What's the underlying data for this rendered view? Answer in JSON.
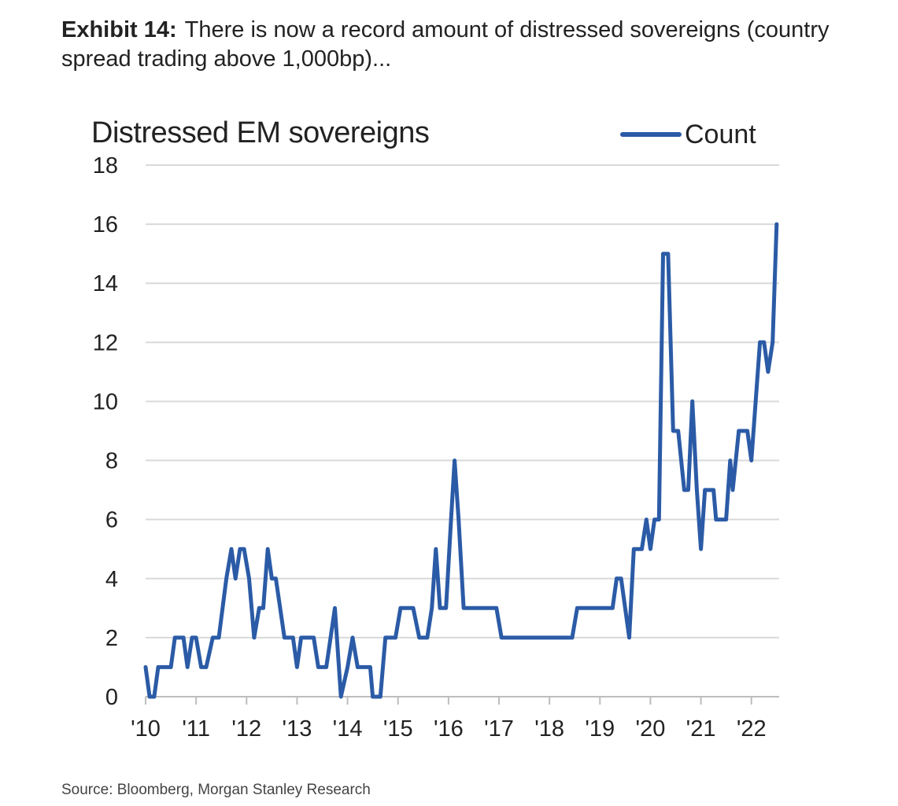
{
  "exhibit": {
    "label": "Exhibit 14:",
    "text": "There is now a record amount of distressed sovereigns (country spread trading above 1,000bp)..."
  },
  "source": "Source: Bloomberg, Morgan Stanley Research",
  "colors": {
    "line": "#2b5ba6",
    "grid": "#d9d9d9"
  },
  "chart_data": {
    "type": "line",
    "title": "Distressed EM sovereigns",
    "xlabel": "",
    "ylabel": "",
    "ylim": [
      0,
      18
    ],
    "yticks": [
      0,
      2,
      4,
      6,
      8,
      10,
      12,
      14,
      16,
      18
    ],
    "xlim": [
      2010.0,
      2022.55
    ],
    "xticks": [
      {
        "value": 2010,
        "label": "'10"
      },
      {
        "value": 2011,
        "label": "'11"
      },
      {
        "value": 2012,
        "label": "'12"
      },
      {
        "value": 2013,
        "label": "'13"
      },
      {
        "value": 2014,
        "label": "'14"
      },
      {
        "value": 2015,
        "label": "'15"
      },
      {
        "value": 2016,
        "label": "'16"
      },
      {
        "value": 2017,
        "label": "'17"
      },
      {
        "value": 2018,
        "label": "'18"
      },
      {
        "value": 2019,
        "label": "'19"
      },
      {
        "value": 2020,
        "label": "'20"
      },
      {
        "value": 2021,
        "label": "'21"
      },
      {
        "value": 2022,
        "label": "'22"
      }
    ],
    "grid": true,
    "legend_position": "top-right",
    "series": [
      {
        "name": "Count",
        "points": [
          [
            2010.0,
            1
          ],
          [
            2010.08,
            0
          ],
          [
            2010.17,
            0
          ],
          [
            2010.25,
            1
          ],
          [
            2010.5,
            1
          ],
          [
            2010.58,
            2
          ],
          [
            2010.75,
            2
          ],
          [
            2010.83,
            1
          ],
          [
            2010.92,
            2
          ],
          [
            2011.0,
            2
          ],
          [
            2011.1,
            1
          ],
          [
            2011.2,
            1
          ],
          [
            2011.33,
            2
          ],
          [
            2011.45,
            2
          ],
          [
            2011.6,
            4
          ],
          [
            2011.7,
            5
          ],
          [
            2011.78,
            4
          ],
          [
            2011.87,
            5
          ],
          [
            2011.95,
            5
          ],
          [
            2012.05,
            4
          ],
          [
            2012.15,
            2
          ],
          [
            2012.25,
            3
          ],
          [
            2012.33,
            3
          ],
          [
            2012.42,
            5
          ],
          [
            2012.5,
            4
          ],
          [
            2012.58,
            4
          ],
          [
            2012.75,
            2
          ],
          [
            2012.92,
            2
          ],
          [
            2013.0,
            1
          ],
          [
            2013.08,
            2
          ],
          [
            2013.33,
            2
          ],
          [
            2013.42,
            1
          ],
          [
            2013.58,
            1
          ],
          [
            2013.75,
            3
          ],
          [
            2013.87,
            0
          ],
          [
            2014.0,
            1
          ],
          [
            2014.1,
            2
          ],
          [
            2014.2,
            1
          ],
          [
            2014.45,
            1
          ],
          [
            2014.5,
            0
          ],
          [
            2014.65,
            0
          ],
          [
            2014.75,
            2
          ],
          [
            2014.95,
            2
          ],
          [
            2015.05,
            3
          ],
          [
            2015.3,
            3
          ],
          [
            2015.42,
            2
          ],
          [
            2015.58,
            2
          ],
          [
            2015.67,
            3
          ],
          [
            2015.75,
            5
          ],
          [
            2015.83,
            3
          ],
          [
            2015.95,
            3
          ],
          [
            2016.05,
            6
          ],
          [
            2016.12,
            8
          ],
          [
            2016.2,
            6
          ],
          [
            2016.3,
            3
          ],
          [
            2016.5,
            3
          ],
          [
            2016.95,
            3
          ],
          [
            2017.05,
            2
          ],
          [
            2017.5,
            2
          ],
          [
            2018.0,
            2
          ],
          [
            2018.45,
            2
          ],
          [
            2018.55,
            3
          ],
          [
            2018.75,
            3
          ],
          [
            2019.0,
            3
          ],
          [
            2019.25,
            3
          ],
          [
            2019.33,
            4
          ],
          [
            2019.42,
            4
          ],
          [
            2019.58,
            2
          ],
          [
            2019.67,
            5
          ],
          [
            2019.83,
            5
          ],
          [
            2019.92,
            6
          ],
          [
            2020.0,
            5
          ],
          [
            2020.08,
            6
          ],
          [
            2020.17,
            6
          ],
          [
            2020.25,
            15
          ],
          [
            2020.3,
            15
          ],
          [
            2020.35,
            15
          ],
          [
            2020.45,
            9
          ],
          [
            2020.55,
            9
          ],
          [
            2020.67,
            7
          ],
          [
            2020.75,
            7
          ],
          [
            2020.83,
            10
          ],
          [
            2020.92,
            7
          ],
          [
            2021.0,
            5
          ],
          [
            2021.08,
            7
          ],
          [
            2021.17,
            7
          ],
          [
            2021.25,
            7
          ],
          [
            2021.3,
            6
          ],
          [
            2021.42,
            6
          ],
          [
            2021.5,
            6
          ],
          [
            2021.58,
            8
          ],
          [
            2021.63,
            7
          ],
          [
            2021.75,
            9
          ],
          [
            2021.83,
            9
          ],
          [
            2021.92,
            9
          ],
          [
            2022.0,
            8
          ],
          [
            2022.17,
            12
          ],
          [
            2022.25,
            12
          ],
          [
            2022.33,
            11
          ],
          [
            2022.42,
            12
          ],
          [
            2022.5,
            16
          ]
        ]
      }
    ]
  }
}
